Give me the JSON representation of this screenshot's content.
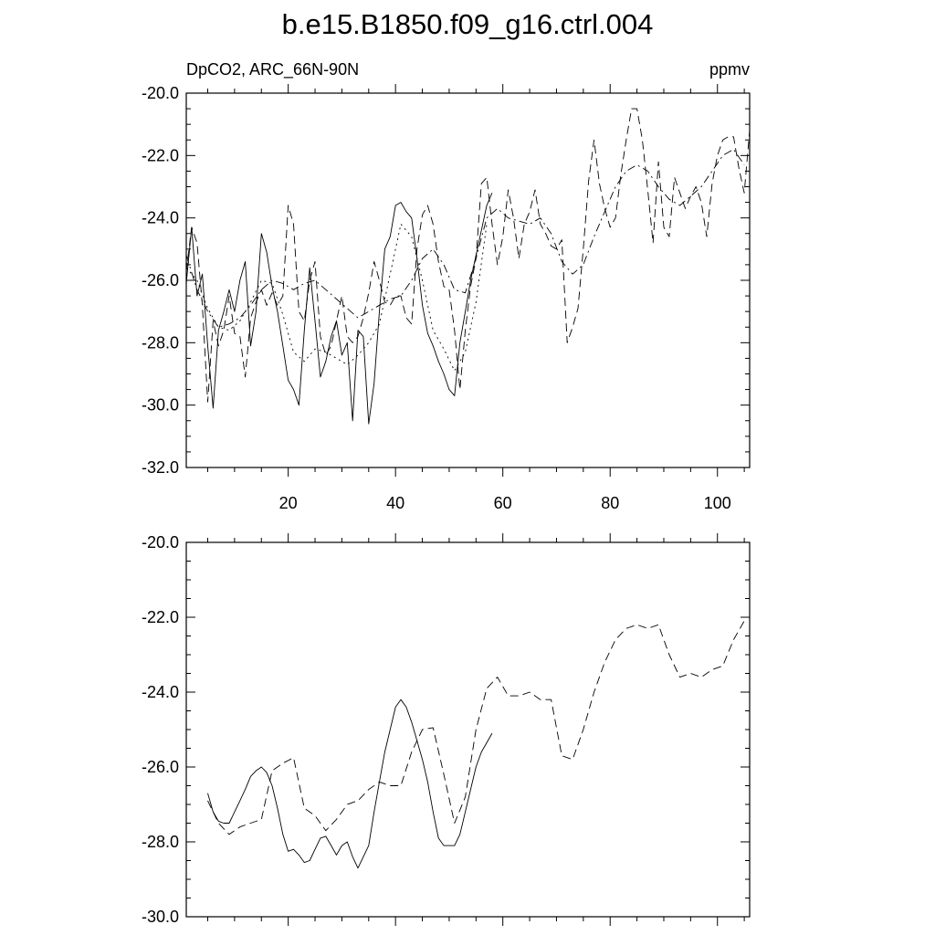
{
  "title": "b.e15.B1850.f09_g16.ctrl.004",
  "colors": {
    "line": "#000000",
    "background": "#ffffff"
  },
  "chart_data": [
    {
      "type": "line",
      "subtitle_left": "DpCO2, ARC_66N-90N",
      "subtitle_right": "ppmv",
      "xlim": [
        1,
        106
      ],
      "ylim": [
        -32,
        -20
      ],
      "yticks": [
        -32,
        -30,
        -28,
        -26,
        -24,
        -22,
        -20
      ],
      "ytick_labels": [
        "-32.0",
        "-30.0",
        "-28.0",
        "-26.0",
        "-24.0",
        "-22.0",
        "-20.0"
      ],
      "xticks": [
        20,
        40,
        60,
        80,
        100
      ],
      "xtick_labels": [
        "20",
        "40",
        "60",
        "80",
        "100"
      ],
      "grid": false,
      "series": [
        {
          "style": "solid",
          "x": [
            1,
            2,
            3,
            4,
            5,
            6,
            7,
            8,
            9,
            10,
            11,
            12,
            13,
            14,
            15,
            16,
            17,
            18,
            19,
            20,
            21,
            22,
            23,
            24,
            25,
            26,
            27,
            28,
            29,
            30,
            31,
            32,
            33,
            34,
            35,
            36,
            37,
            38,
            39,
            40,
            41,
            42,
            43,
            44,
            45,
            46,
            47,
            48,
            49,
            50,
            51,
            52,
            53,
            54,
            55,
            56,
            57,
            58
          ],
          "values": [
            -26.1,
            -24.3,
            -26.5,
            -25.8,
            -28.1,
            -30.1,
            -27.6,
            -27.0,
            -26.3,
            -27.0,
            -26.0,
            -25.4,
            -28.1,
            -27.0,
            -24.5,
            -25.1,
            -26.2,
            -27.0,
            -28.1,
            -29.2,
            -29.5,
            -30.0,
            -27.6,
            -25.6,
            -27.3,
            -29.1,
            -28.6,
            -27.8,
            -27.3,
            -28.4,
            -28.0,
            -30.5,
            -27.6,
            -27.8,
            -30.6,
            -29.3,
            -27.0,
            -25.0,
            -24.6,
            -23.6,
            -23.5,
            -23.8,
            -24.0,
            -25.3,
            -26.8,
            -27.7,
            -28.1,
            -28.6,
            -29.0,
            -29.5,
            -29.7,
            -28.0,
            -27.0,
            -26.0,
            -25.2,
            -24.4,
            -23.6,
            -23.2
          ]
        },
        {
          "style": "dashed",
          "x": [
            1,
            2,
            3,
            4,
            5,
            6,
            7,
            8,
            9,
            10,
            11,
            12,
            13,
            14,
            15,
            16,
            17,
            18,
            19,
            20,
            21,
            22,
            23,
            24,
            25,
            26,
            27,
            28,
            29,
            30,
            31,
            32,
            33,
            34,
            35,
            36,
            37,
            38,
            39,
            40,
            41,
            42,
            43,
            44,
            45,
            46,
            47,
            48,
            49,
            50,
            51,
            52,
            53,
            54,
            55,
            56,
            57,
            58,
            59,
            60,
            61,
            62,
            63,
            64,
            65,
            66,
            67,
            68,
            69,
            70,
            71,
            72,
            73,
            74,
            75,
            76,
            77,
            78,
            79,
            80,
            81,
            82,
            83,
            84,
            85,
            86,
            87,
            88,
            89,
            90,
            91,
            92,
            93,
            94,
            95,
            96,
            97,
            98,
            99,
            100,
            101,
            102,
            103,
            104,
            105,
            106
          ],
          "values": [
            -25.7,
            -24.3,
            -24.8,
            -26.8,
            -29.9,
            -27.3,
            -28.1,
            -27.6,
            -26.5,
            -27.7,
            -27.8,
            -29.1,
            -27.2,
            -26.7,
            -26.3,
            -26.8,
            -26.4,
            -26.8,
            -26.5,
            -23.6,
            -24.2,
            -27.0,
            -27.3,
            -26.0,
            -25.4,
            -27.8,
            -28.4,
            -28.1,
            -27.3,
            -26.5,
            -27.8,
            -28.0,
            -27.8,
            -27.2,
            -26.4,
            -25.4,
            -26.0,
            -26.7,
            -26.8,
            -26.5,
            -26.5,
            -27.2,
            -27.4,
            -25.0,
            -23.9,
            -23.6,
            -24.2,
            -25.4,
            -26.2,
            -26.3,
            -27.6,
            -29.5,
            -27.6,
            -26.2,
            -25.3,
            -22.9,
            -22.7,
            -24.2,
            -25.5,
            -24.6,
            -23.1,
            -24.0,
            -25.3,
            -24.2,
            -23.8,
            -23.1,
            -24.2,
            -24.5,
            -24.9,
            -25.0,
            -24.7,
            -28.0,
            -27.5,
            -26.9,
            -25.0,
            -22.8,
            -21.5,
            -22.9,
            -23.7,
            -24.3,
            -24.0,
            -22.6,
            -21.5,
            -20.5,
            -20.5,
            -21.5,
            -23.1,
            -24.8,
            -22.2,
            -24.3,
            -24.6,
            -22.7,
            -23.2,
            -23.7,
            -23.3,
            -23.0,
            -23.5,
            -24.6,
            -22.9,
            -22.0,
            -21.5,
            -21.4,
            -21.4,
            -22.4,
            -23.2,
            -21.2
          ]
        },
        {
          "style": "dash-dot",
          "x": [
            1,
            3,
            5,
            7,
            9,
            11,
            13,
            15,
            17,
            19,
            21,
            23,
            25,
            27,
            29,
            31,
            33,
            35,
            37,
            39,
            41,
            43,
            45,
            47,
            49,
            51,
            53,
            55,
            57,
            59,
            61,
            63,
            65,
            67,
            69,
            71,
            73,
            75,
            77,
            79,
            81,
            83,
            85,
            87,
            89,
            91,
            93,
            95,
            97,
            99,
            101,
            103,
            105
          ],
          "values": [
            -25.2,
            -26.3,
            -27.0,
            -27.5,
            -27.4,
            -27.2,
            -26.8,
            -26.3,
            -26.0,
            -26.1,
            -26.3,
            -26.1,
            -26.0,
            -26.3,
            -26.6,
            -26.9,
            -27.2,
            -27.0,
            -26.8,
            -26.6,
            -26.5,
            -26.0,
            -25.3,
            -25.0,
            -25.5,
            -26.3,
            -26.4,
            -25.3,
            -24.0,
            -23.7,
            -24.0,
            -24.1,
            -24.2,
            -24.0,
            -24.5,
            -25.4,
            -25.8,
            -25.5,
            -24.6,
            -23.8,
            -23.0,
            -22.5,
            -22.3,
            -22.5,
            -23.0,
            -23.4,
            -23.6,
            -23.3,
            -23.0,
            -22.5,
            -22.0,
            -21.8,
            -22.3
          ]
        },
        {
          "style": "dotted",
          "x": [
            1,
            3,
            5,
            7,
            9,
            11,
            13,
            15,
            17,
            19,
            21,
            23,
            25,
            27,
            29,
            31,
            33,
            35,
            37,
            39,
            41,
            43,
            45,
            47,
            49,
            51,
            53,
            55,
            57
          ],
          "values": [
            -25.6,
            -26.0,
            -26.9,
            -27.5,
            -27.6,
            -27.3,
            -26.7,
            -26.0,
            -26.1,
            -27.1,
            -28.3,
            -28.6,
            -28.2,
            -28.3,
            -28.5,
            -28.7,
            -28.4,
            -28.0,
            -27.4,
            -25.8,
            -24.2,
            -24.6,
            -26.0,
            -27.6,
            -28.2,
            -28.9,
            -28.3,
            -26.7,
            -24.2
          ]
        }
      ]
    },
    {
      "type": "line",
      "xlim": [
        1,
        106
      ],
      "ylim": [
        -30,
        -20
      ],
      "yticks": [
        -30,
        -28,
        -26,
        -24,
        -22,
        -20
      ],
      "ytick_labels": [
        "-30.0",
        "-28.0",
        "-26.0",
        "-24.0",
        "-22.0",
        "-20.0"
      ],
      "xticks": [
        20,
        40,
        60,
        80,
        100
      ],
      "grid": false,
      "series": [
        {
          "style": "solid",
          "x": [
            5,
            6,
            7,
            8,
            9,
            10,
            11,
            12,
            13,
            14,
            15,
            16,
            17,
            18,
            19,
            20,
            21,
            22,
            23,
            24,
            25,
            26,
            27,
            28,
            29,
            30,
            31,
            32,
            33,
            34,
            35,
            36,
            37,
            38,
            39,
            40,
            41,
            42,
            43,
            44,
            45,
            46,
            47,
            48,
            49,
            50,
            51,
            52,
            53,
            54,
            55,
            56,
            57,
            58
          ],
          "values": [
            -26.7,
            -27.2,
            -27.45,
            -27.5,
            -27.5,
            -27.2,
            -26.9,
            -26.6,
            -26.25,
            -26.1,
            -26.0,
            -26.15,
            -26.5,
            -27.1,
            -27.8,
            -28.25,
            -28.2,
            -28.35,
            -28.55,
            -28.5,
            -28.2,
            -27.9,
            -27.85,
            -28.1,
            -28.35,
            -28.1,
            -28.0,
            -28.4,
            -28.7,
            -28.4,
            -28.1,
            -27.2,
            -26.4,
            -25.6,
            -25.0,
            -24.4,
            -24.2,
            -24.4,
            -24.8,
            -25.3,
            -25.8,
            -26.4,
            -27.2,
            -27.9,
            -28.1,
            -28.1,
            -28.1,
            -27.8,
            -27.2,
            -26.6,
            -26.0,
            -25.6,
            -25.35,
            -25.1
          ]
        },
        {
          "style": "dashed",
          "x": [
            5,
            7,
            9,
            11,
            13,
            15,
            17,
            19,
            21,
            23,
            25,
            27,
            29,
            31,
            33,
            35,
            37,
            39,
            41,
            43,
            45,
            47,
            49,
            51,
            53,
            55,
            57,
            59,
            61,
            63,
            65,
            67,
            69,
            71,
            73,
            75,
            77,
            79,
            81,
            83,
            85,
            87,
            89,
            91,
            93,
            95,
            97,
            99,
            101,
            103,
            105
          ],
          "values": [
            -26.9,
            -27.5,
            -27.8,
            -27.6,
            -27.5,
            -27.4,
            -26.1,
            -25.9,
            -25.75,
            -27.1,
            -27.3,
            -27.7,
            -27.4,
            -27.0,
            -26.9,
            -26.6,
            -26.4,
            -26.5,
            -26.5,
            -25.6,
            -25.0,
            -24.95,
            -26.2,
            -27.5,
            -26.8,
            -25.0,
            -23.9,
            -23.6,
            -24.1,
            -24.1,
            -24.0,
            -24.2,
            -24.2,
            -25.7,
            -25.8,
            -25.0,
            -24.0,
            -23.2,
            -22.6,
            -22.3,
            -22.2,
            -22.3,
            -22.2,
            -23.0,
            -23.6,
            -23.5,
            -23.6,
            -23.4,
            -23.3,
            -22.6,
            -22.1
          ]
        }
      ]
    }
  ]
}
